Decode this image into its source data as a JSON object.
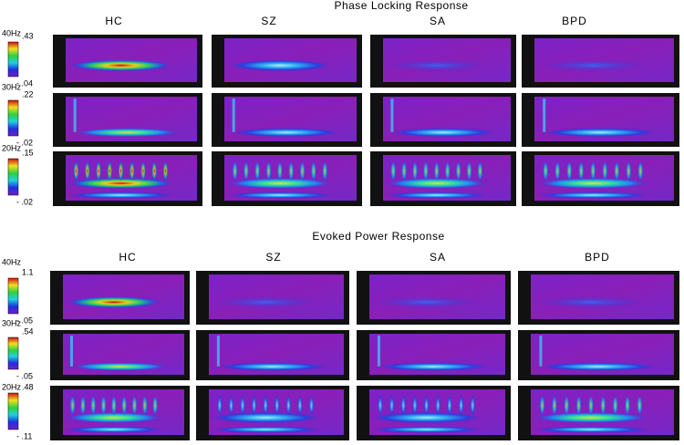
{
  "sections": [
    {
      "title": "Phase Locking Response",
      "columns": [
        "HC",
        "SZ",
        "SA",
        "BPD"
      ],
      "rows": [
        {
          "label": "40Hz",
          "max": ".43",
          "min": "- .04"
        },
        {
          "label": "30Hz",
          "max": ".22",
          "min": "- .02"
        },
        {
          "label": "20Hz",
          "max": ".15",
          "min": "- .02"
        }
      ]
    },
    {
      "title": "Evoked Power Response",
      "columns": [
        "HC",
        "SZ",
        "SA",
        "BPD"
      ],
      "rows": [
        {
          "label": "40Hz",
          "max": "1.1",
          "min": "- .05"
        },
        {
          "label": "30Hz",
          "max": ".54",
          "min": "- .05"
        },
        {
          "label": "20Hz",
          "max": ".48",
          "min": "- .11"
        }
      ]
    }
  ]
}
